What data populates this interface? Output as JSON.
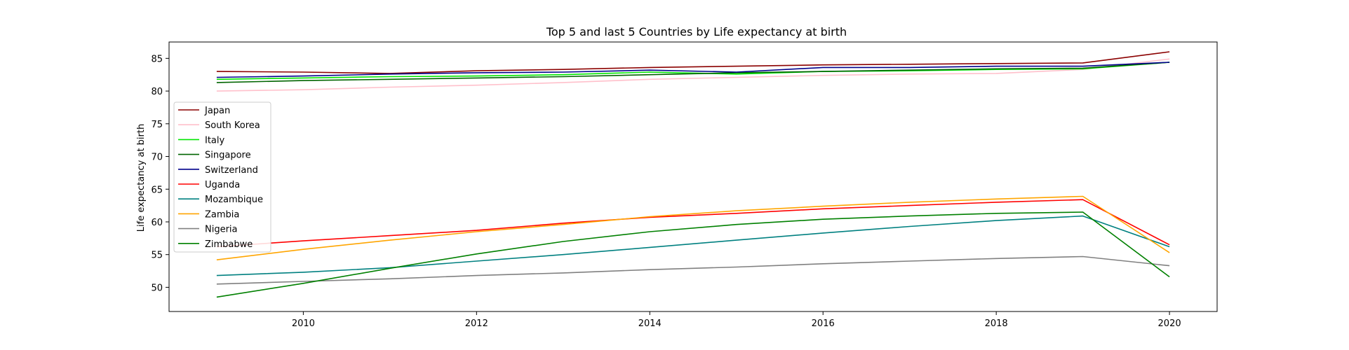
{
  "chart_data": {
    "type": "line",
    "title": "Top 5 and last 5 Countries by Life expectancy at birth",
    "xlabel": "",
    "ylabel": "Life expectancy at birth",
    "xlim": [
      2008.45,
      2020.55
    ],
    "ylim": [
      46.3,
      87.5
    ],
    "xticks": [
      2010,
      2012,
      2014,
      2016,
      2018,
      2020
    ],
    "yticks": [
      50,
      55,
      60,
      65,
      70,
      75,
      80,
      85
    ],
    "grid": false,
    "legend_position": "center-left",
    "x": [
      2009,
      2010,
      2011,
      2012,
      2013,
      2014,
      2015,
      2016,
      2017,
      2018,
      2019,
      2020
    ],
    "series": [
      {
        "name": "Japan",
        "color": "#8b0000",
        "values": [
          83.0,
          82.9,
          82.7,
          83.1,
          83.3,
          83.6,
          83.8,
          84.0,
          84.1,
          84.2,
          84.3,
          86.0
        ]
      },
      {
        "name": "South Korea",
        "color": "#ffc0cb",
        "values": [
          80.0,
          80.2,
          80.6,
          80.9,
          81.3,
          81.8,
          82.1,
          82.4,
          82.6,
          82.7,
          83.3,
          84.9
        ]
      },
      {
        "name": "Italy",
        "color": "#00e600",
        "values": [
          81.8,
          82.0,
          82.2,
          82.3,
          82.5,
          82.9,
          82.6,
          83.0,
          83.1,
          83.3,
          83.4,
          84.4
        ]
      },
      {
        "name": "Singapore",
        "color": "#006400",
        "values": [
          81.3,
          81.6,
          81.8,
          82.0,
          82.2,
          82.5,
          82.8,
          83.0,
          83.2,
          83.4,
          83.5,
          84.4
        ]
      },
      {
        "name": "Switzerland",
        "color": "#00008b",
        "values": [
          82.1,
          82.3,
          82.6,
          82.8,
          82.9,
          83.2,
          82.9,
          83.6,
          83.6,
          83.8,
          83.8,
          84.4
        ]
      },
      {
        "name": "Uganda",
        "color": "#ff0000",
        "values": [
          56.2,
          57.1,
          57.9,
          58.7,
          59.8,
          60.7,
          61.3,
          62.0,
          62.5,
          63.0,
          63.4,
          56.5
        ]
      },
      {
        "name": "Mozambique",
        "color": "#008080",
        "values": [
          51.8,
          52.3,
          53.0,
          54.0,
          55.0,
          56.1,
          57.2,
          58.3,
          59.3,
          60.2,
          60.9,
          56.2
        ]
      },
      {
        "name": "Zambia",
        "color": "#ffa500",
        "values": [
          54.2,
          55.8,
          57.2,
          58.5,
          59.6,
          60.8,
          61.7,
          62.4,
          63.0,
          63.5,
          63.9,
          55.3
        ]
      },
      {
        "name": "Nigeria",
        "color": "#808080",
        "values": [
          50.5,
          50.9,
          51.3,
          51.8,
          52.2,
          52.7,
          53.1,
          53.6,
          54.0,
          54.4,
          54.7,
          53.3
        ]
      },
      {
        "name": "Zimbabwe",
        "color": "#008000",
        "values": [
          48.5,
          50.6,
          52.9,
          55.1,
          57.0,
          58.5,
          59.6,
          60.4,
          60.9,
          61.3,
          61.5,
          51.6
        ]
      }
    ]
  }
}
